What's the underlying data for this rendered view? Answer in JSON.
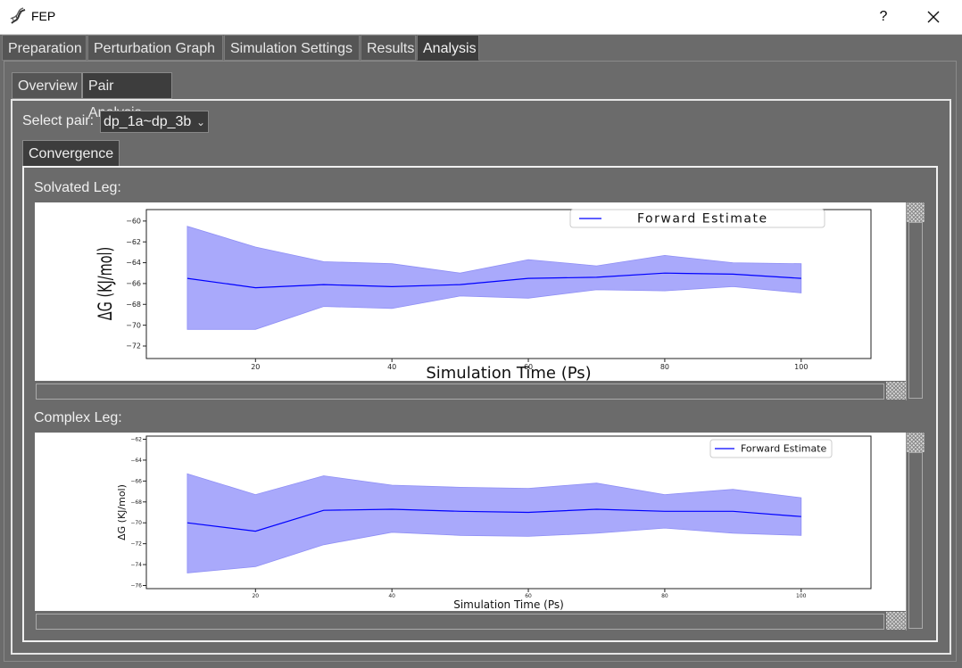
{
  "window": {
    "title": "FEP",
    "help_label": "?"
  },
  "tabs": [
    {
      "label": "Preparation"
    },
    {
      "label": "Perturbation Graph"
    },
    {
      "label": "Simulation Settings"
    },
    {
      "label": "Results"
    },
    {
      "label": "Analysis"
    }
  ],
  "subtabs": [
    {
      "label": "Overview"
    },
    {
      "label": "Pair Analysis"
    }
  ],
  "pair": {
    "label": "Select pair:",
    "value": "dp_1a~dp_3b"
  },
  "convergence_tab": "Convergence",
  "legs": {
    "solvated": "Solvated Leg:",
    "complex": "Complex Leg:"
  },
  "chart_data": [
    {
      "type": "line",
      "xlabel": "Simulation Time (Ps)",
      "ylabel": "ΔG (KJ/mol)",
      "x": [
        10,
        20,
        30,
        40,
        50,
        60,
        70,
        80,
        90,
        100
      ],
      "series": [
        {
          "name": "Forward Estimate",
          "values": [
            -65.5,
            -66.4,
            -66.1,
            -66.3,
            -66.1,
            -65.5,
            -65.4,
            -65.0,
            -65.1,
            -65.5
          ],
          "lower": [
            -70.4,
            -70.4,
            -68.2,
            -68.4,
            -67.2,
            -67.4,
            -66.6,
            -66.7,
            -66.3,
            -66.9
          ],
          "upper": [
            -60.5,
            -62.5,
            -63.9,
            -64.1,
            -65.0,
            -63.7,
            -64.3,
            -63.3,
            -64.0,
            -64.1
          ],
          "color": "#0000ff"
        }
      ],
      "xticks": [
        20,
        40,
        60,
        80,
        100
      ],
      "yticks": [
        -60,
        -62,
        -64,
        -66,
        -68,
        -70,
        -72
      ],
      "xlim": [
        4,
        105
      ],
      "ylim": [
        -73.2,
        -58.9
      ],
      "legend": "top-right"
    },
    {
      "type": "line",
      "xlabel": "Simulation Time (Ps)",
      "ylabel": "ΔG (KJ/mol)",
      "x": [
        10,
        20,
        30,
        40,
        50,
        60,
        70,
        80,
        90,
        100
      ],
      "series": [
        {
          "name": "Forward Estimate",
          "values": [
            -70.0,
            -70.8,
            -68.8,
            -68.7,
            -68.9,
            -69.0,
            -68.7,
            -68.9,
            -68.9,
            -69.4
          ],
          "lower": [
            -74.8,
            -74.2,
            -72.1,
            -70.9,
            -71.2,
            -71.3,
            -71.0,
            -70.5,
            -71.0,
            -71.2
          ],
          "upper": [
            -65.3,
            -67.3,
            -65.5,
            -66.4,
            -66.6,
            -66.7,
            -66.2,
            -67.3,
            -66.8,
            -67.6
          ],
          "color": "#0000ff"
        }
      ],
      "xticks": [
        20,
        40,
        60,
        80,
        100
      ],
      "yticks": [
        -62,
        -64,
        -66,
        -68,
        -70,
        -72,
        -74,
        -76
      ],
      "xlim": [
        4,
        105
      ],
      "ylim": [
        -76.3,
        -61.7
      ],
      "legend": "top-right"
    }
  ]
}
